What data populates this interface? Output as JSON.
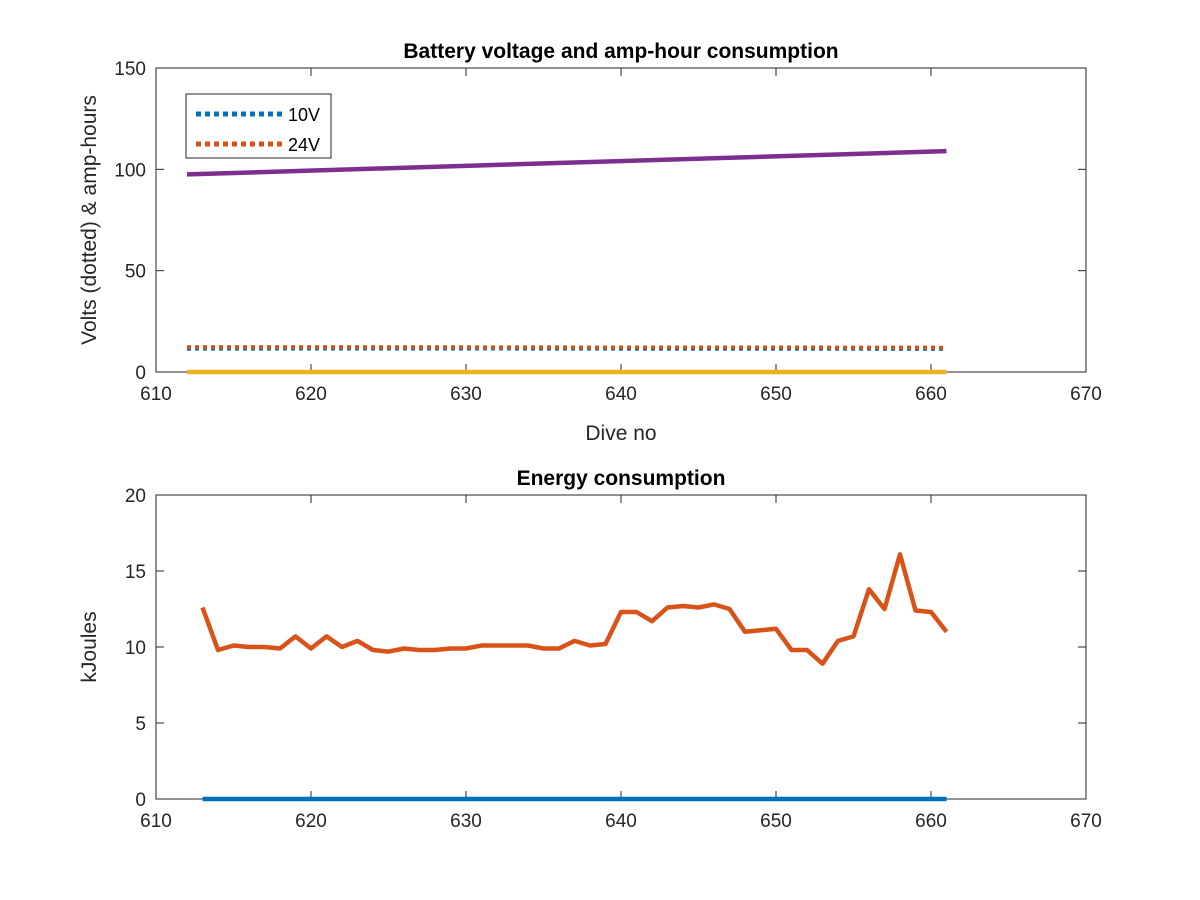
{
  "chart_data": [
    {
      "type": "line",
      "title": "Battery voltage and amp-hour consumption",
      "xlabel": "Dive no",
      "ylabel": "Volts (dotted) & amp-hours",
      "xlim": [
        610,
        670
      ],
      "ylim": [
        0,
        150
      ],
      "xticks": [
        610,
        620,
        630,
        640,
        650,
        660,
        670
      ],
      "yticks": [
        0,
        50,
        100,
        150
      ],
      "legend": {
        "placement": "top-left",
        "entries": [
          "10V",
          "24V"
        ]
      },
      "series": [
        {
          "name": "10V",
          "style": "dotted",
          "color": "#0072BD",
          "x": [
            612,
            620,
            630,
            640,
            650,
            661
          ],
          "y": [
            11.5,
            11.6,
            11.6,
            11.5,
            11.5,
            11.4
          ]
        },
        {
          "name": "24V",
          "style": "dotted",
          "color": "#D95319",
          "x": [
            612,
            620,
            630,
            640,
            650,
            661
          ],
          "y": [
            12.3,
            12.3,
            12.2,
            12.1,
            12.1,
            12.0
          ]
        },
        {
          "style": "solid",
          "color": "#7E2F8E",
          "x": [
            612,
            661
          ],
          "y": [
            97.5,
            109
          ]
        },
        {
          "style": "solid",
          "color": "#EDB120",
          "x": [
            612,
            661
          ],
          "y": [
            0,
            0
          ]
        }
      ]
    },
    {
      "type": "line",
      "title": "Energy consumption",
      "xlabel": "",
      "ylabel": "kJoules",
      "xlim": [
        610,
        670
      ],
      "ylim": [
        0,
        20
      ],
      "xticks": [
        610,
        620,
        630,
        640,
        650,
        660,
        670
      ],
      "yticks": [
        0,
        5,
        10,
        15,
        20
      ],
      "series": [
        {
          "style": "solid",
          "color": "#0072BD",
          "x": [
            613,
            661
          ],
          "y": [
            0,
            0
          ]
        },
        {
          "style": "solid",
          "color": "#D95319",
          "x": [
            613,
            614,
            615,
            616,
            617,
            618,
            619,
            620,
            621,
            622,
            623,
            624,
            625,
            626,
            627,
            628,
            629,
            630,
            631,
            632,
            633,
            634,
            635,
            636,
            637,
            638,
            639,
            640,
            641,
            642,
            643,
            644,
            645,
            646,
            647,
            648,
            649,
            650,
            651,
            652,
            653,
            654,
            655,
            656,
            657,
            658,
            659,
            660,
            661
          ],
          "y": [
            12.6,
            9.8,
            10.1,
            10.0,
            10.0,
            9.9,
            10.7,
            9.9,
            10.7,
            10.0,
            10.4,
            9.8,
            9.7,
            9.9,
            9.8,
            9.8,
            9.9,
            9.9,
            10.1,
            10.1,
            10.1,
            10.1,
            9.9,
            9.9,
            10.4,
            10.1,
            10.2,
            12.3,
            12.3,
            11.7,
            12.6,
            12.7,
            12.6,
            12.8,
            12.5,
            11.0,
            11.1,
            11.2,
            9.8,
            9.8,
            8.9,
            10.4,
            10.7,
            13.8,
            12.5,
            16.1,
            12.4,
            12.3,
            11.0
          ]
        }
      ]
    }
  ]
}
